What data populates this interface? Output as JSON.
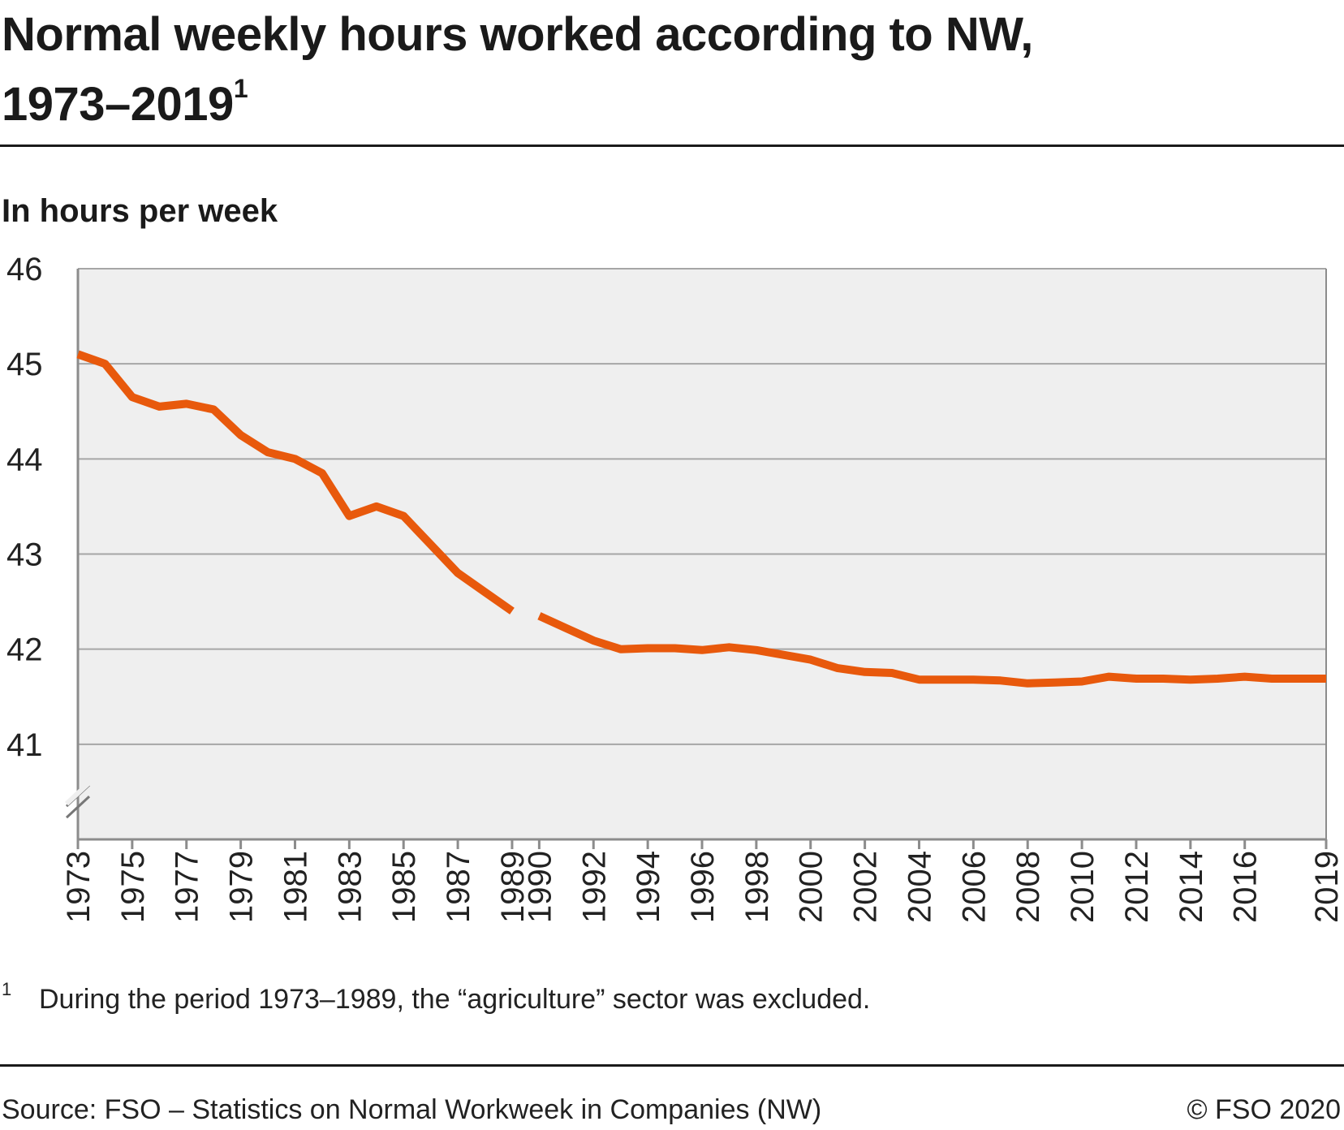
{
  "header": {
    "title": "Normal weekly hours worked according to NW,",
    "title_line2": "1973–2019",
    "title_footnote_mark": "1"
  },
  "unit_label": "In hours per week",
  "footnote": {
    "mark": "1",
    "text": "During the period 1973–1989, the “agriculture” sector was excluded."
  },
  "source": "Source: FSO – Statistics on Normal Workweek in Companies (NW)",
  "copyright": "© FSO 2020",
  "colors": {
    "line": "#e8590c",
    "plot_bg": "#efefef",
    "grid": "#a6a6a6",
    "axis": "#8c8c8c"
  },
  "chart_data": {
    "type": "line",
    "title": "Normal weekly hours worked according to NW, 1973–2019",
    "xlabel": "",
    "ylabel": "In hours per week",
    "ylim": [
      40,
      46
    ],
    "y_ticks": [
      41,
      42,
      43,
      44,
      45,
      46
    ],
    "y_axis_break": true,
    "xlim": [
      1973,
      2019
    ],
    "x_tick_labels": [
      "1973",
      "1975",
      "1977",
      "1979",
      "1981",
      "1983",
      "1985",
      "1987",
      "1989",
      "1990",
      "1992",
      "1994",
      "1996",
      "1998",
      "2000",
      "2002",
      "2004",
      "2006",
      "2008",
      "2010",
      "2012",
      "2014",
      "2016",
      "2019"
    ],
    "grid": true,
    "legend": "none",
    "series": [
      {
        "segments": [
          {
            "x": [
              1973,
              1974,
              1975,
              1976,
              1977,
              1978,
              1979,
              1980,
              1981,
              1982,
              1983,
              1984,
              1985,
              1986,
              1987,
              1988,
              1989
            ],
            "y": [
              45.1,
              45.0,
              44.65,
              44.55,
              44.58,
              44.52,
              44.25,
              44.07,
              44.0,
              43.85,
              43.4,
              43.5,
              43.4,
              43.1,
              42.8,
              42.6,
              42.4
            ]
          },
          {
            "x": [
              1990,
              1991,
              1992,
              1993,
              1994,
              1995,
              1996,
              1997,
              1998,
              1999,
              2000,
              2001,
              2002,
              2003,
              2004,
              2005,
              2006,
              2007,
              2008,
              2009,
              2010,
              2011,
              2012,
              2013,
              2014,
              2015,
              2016,
              2017,
              2018,
              2019
            ],
            "y": [
              42.35,
              42.22,
              42.09,
              42.0,
              42.01,
              42.01,
              41.99,
              42.02,
              41.99,
              41.94,
              41.89,
              41.8,
              41.76,
              41.75,
              41.68,
              41.68,
              41.68,
              41.67,
              41.64,
              41.65,
              41.66,
              41.71,
              41.69,
              41.69,
              41.68,
              41.69,
              41.71,
              41.69,
              41.69,
              41.69
            ]
          }
        ]
      }
    ]
  }
}
